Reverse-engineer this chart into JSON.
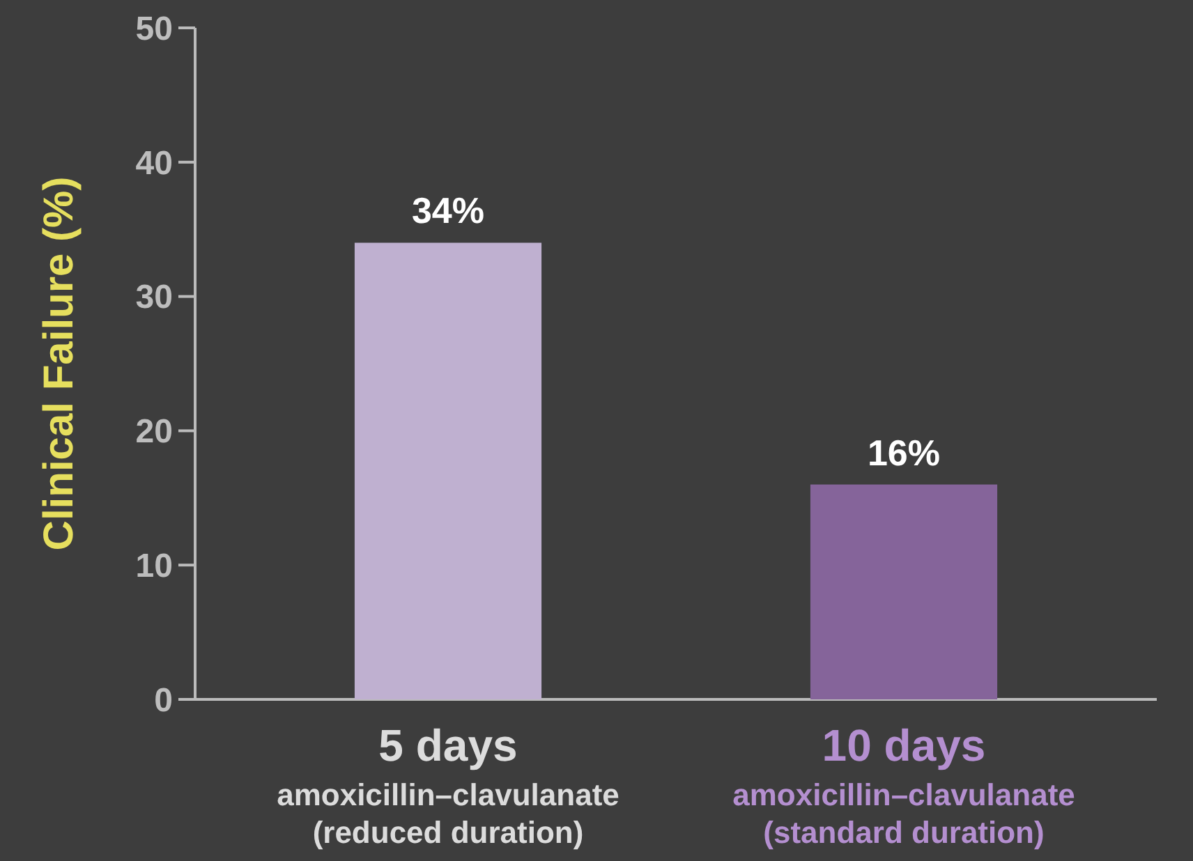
{
  "chart_data": {
    "type": "bar",
    "ylabel": "Clinical Failure (%)",
    "categories": [
      "5 days\namoxicillin–clavulanate\n(reduced duration)",
      "10 days\namoxicillin–clavulanate\n(standard duration)"
    ],
    "values": [
      34,
      16
    ],
    "colors": [
      "#bfb0d0",
      "#85649a"
    ],
    "value_labels": [
      "34%",
      "16%"
    ],
    "ylim": [
      0,
      50
    ],
    "yticks": [
      0,
      10,
      20,
      30,
      40,
      50
    ],
    "grid": false
  }
}
